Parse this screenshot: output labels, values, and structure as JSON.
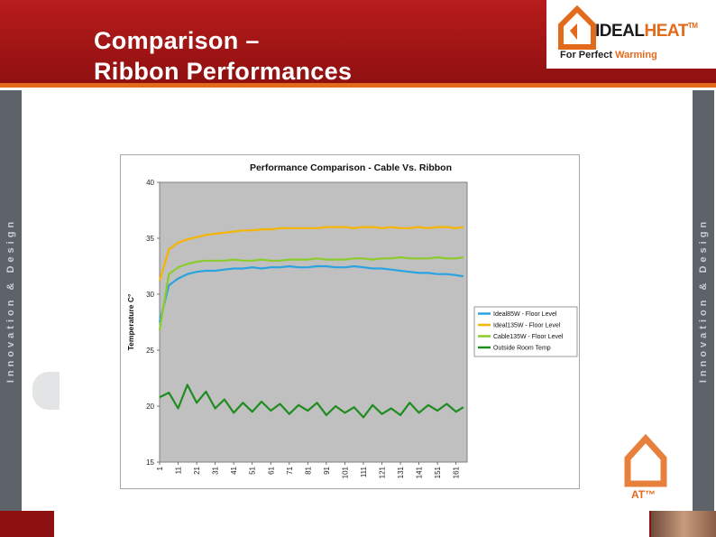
{
  "slide": {
    "title_line1": "Comparison –",
    "title_line2": "Ribbon Performances",
    "sidebar_text": "Innovation & Design",
    "logo": {
      "word1": "IDEAL",
      "word2": "HEAT",
      "tm": "TM",
      "tagline_part1": "For Perfect",
      "tagline_part2": "Warming"
    },
    "watermark_text": "AT™",
    "colors": {
      "header": "#b81c1c",
      "accent": "#e36a1a",
      "sidebar": "#5e6369"
    }
  },
  "chart_data": {
    "type": "line",
    "title": "Performance Comparison - Cable Vs. Ribbon",
    "ylabel": "Temperature C°",
    "xlabel": "",
    "ylim": [
      15,
      40
    ],
    "yticks": [
      15,
      20,
      25,
      30,
      35,
      40
    ],
    "xticks": [
      "1",
      "11",
      "21",
      "31",
      "41",
      "51",
      "61",
      "71",
      "81",
      "91",
      "101",
      "111",
      "121",
      "131",
      "141",
      "151",
      "161"
    ],
    "x": [
      1,
      6,
      11,
      16,
      21,
      26,
      31,
      36,
      41,
      46,
      51,
      56,
      61,
      66,
      71,
      76,
      81,
      86,
      91,
      96,
      101,
      106,
      111,
      116,
      121,
      126,
      131,
      136,
      141,
      146,
      151,
      156,
      161,
      165
    ],
    "plot_background": "#c0c0c0",
    "grid": false,
    "legend_position": "right",
    "series": [
      {
        "name": "Ideal85W - Floor Level",
        "color": "#2aa3e0",
        "values": [
          27.5,
          30.8,
          31.4,
          31.8,
          32.0,
          32.1,
          32.1,
          32.2,
          32.3,
          32.3,
          32.4,
          32.3,
          32.4,
          32.4,
          32.5,
          32.4,
          32.4,
          32.5,
          32.5,
          32.4,
          32.4,
          32.5,
          32.4,
          32.3,
          32.3,
          32.2,
          32.1,
          32.0,
          31.9,
          31.9,
          31.8,
          31.8,
          31.7,
          31.6
        ]
      },
      {
        "name": "Ideal135W - Floor Level",
        "color": "#f5b400",
        "values": [
          31.2,
          34.0,
          34.6,
          34.9,
          35.1,
          35.3,
          35.4,
          35.5,
          35.6,
          35.7,
          35.7,
          35.8,
          35.8,
          35.9,
          35.9,
          35.9,
          35.9,
          35.9,
          36.0,
          36.0,
          36.0,
          35.9,
          36.0,
          36.0,
          35.9,
          36.0,
          35.9,
          35.9,
          36.0,
          35.9,
          36.0,
          36.0,
          35.9,
          36.0
        ]
      },
      {
        "name": "Cable135W - Floor Level",
        "color": "#8ccb2c",
        "values": [
          26.8,
          31.8,
          32.4,
          32.7,
          32.9,
          33.0,
          33.0,
          33.0,
          33.1,
          33.0,
          33.0,
          33.1,
          33.0,
          33.0,
          33.1,
          33.1,
          33.1,
          33.2,
          33.1,
          33.1,
          33.1,
          33.2,
          33.2,
          33.1,
          33.2,
          33.2,
          33.3,
          33.2,
          33.2,
          33.2,
          33.3,
          33.2,
          33.2,
          33.3
        ]
      },
      {
        "name": "Outside Room Temp",
        "color": "#1f8c1f",
        "values": [
          20.8,
          21.2,
          19.8,
          21.9,
          20.3,
          21.3,
          19.8,
          20.6,
          19.4,
          20.3,
          19.5,
          20.4,
          19.6,
          20.2,
          19.3,
          20.1,
          19.6,
          20.3,
          19.2,
          20.0,
          19.4,
          19.9,
          19.0,
          20.1,
          19.3,
          19.8,
          19.2,
          20.3,
          19.4,
          20.1,
          19.6,
          20.2,
          19.5,
          19.9
        ]
      }
    ]
  }
}
